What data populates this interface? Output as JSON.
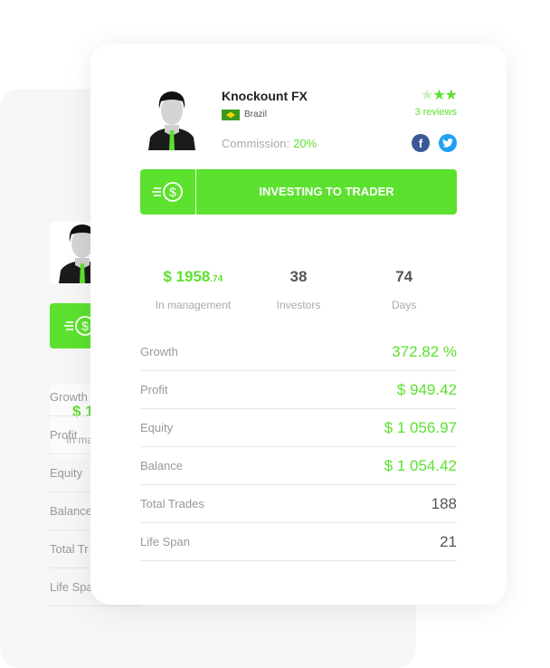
{
  "colors": {
    "accent": "#5ce12f",
    "facebook": "#3b5998",
    "twitter": "#1da1f2"
  },
  "back_card": {
    "stat_value": "$ 1",
    "stat_label": "In ma",
    "rows": [
      "Growth",
      "Profit",
      "Equity",
      "Balance",
      "Total Tr",
      "Life Spa"
    ]
  },
  "trader": {
    "name": "Knockount FX",
    "country": "Brazil",
    "commission_label": "Commission:",
    "commission_value": "20%",
    "rating": 2,
    "rating_max": 3,
    "reviews": "3 reviews"
  },
  "social": {
    "facebook": "f",
    "twitter": "t"
  },
  "invest_button": {
    "label": "INVESTING TO TRADER",
    "icon": "dollar-coin-speed-icon"
  },
  "stats": [
    {
      "value": "$ 1958",
      "value_cents": ".74",
      "label": "In management"
    },
    {
      "value": "38",
      "label": "Investors"
    },
    {
      "value": "74",
      "label": "Days"
    }
  ],
  "rows": [
    {
      "label": "Growth",
      "value": "372.82 %",
      "accent": true
    },
    {
      "label": "Profit",
      "value": "$ 949.42",
      "accent": true
    },
    {
      "label": "Equity",
      "value": "$ 1 056.97",
      "accent": true
    },
    {
      "label": "Balance",
      "value": "$ 1 054.42",
      "accent": true
    },
    {
      "label": "Total Trades",
      "value": "188",
      "accent": false
    },
    {
      "label": "Life Span",
      "value": "21",
      "accent": false
    }
  ]
}
